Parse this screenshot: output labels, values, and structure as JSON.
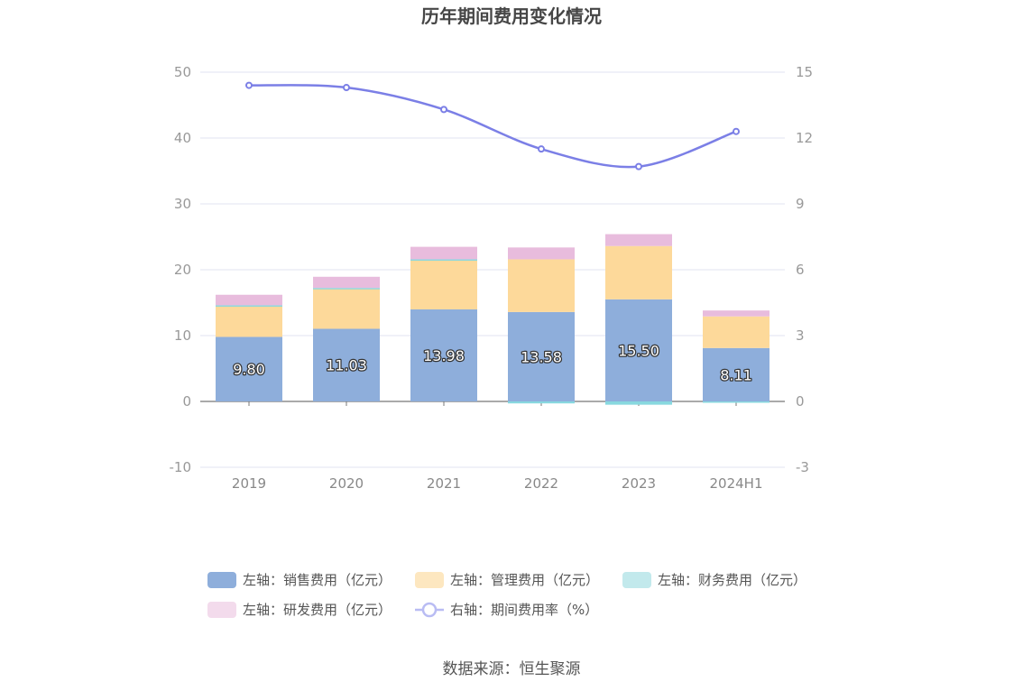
{
  "chart_data": {
    "type": "bar",
    "title": "历年期间费用变化情况",
    "categories": [
      "2019",
      "2020",
      "2021",
      "2022",
      "2023",
      "2024H1"
    ],
    "stacked": true,
    "left_axis": {
      "ylim": [
        -10,
        50
      ],
      "ticks": [
        -10,
        0,
        10,
        20,
        30,
        40,
        50
      ]
    },
    "right_axis": {
      "ylim": [
        -3,
        15
      ],
      "ticks": [
        -3,
        0,
        3,
        6,
        9,
        12,
        15
      ]
    },
    "grid": true,
    "legend_position": "bottom",
    "series": [
      {
        "name": "左轴：销售费用（亿元）",
        "axis": "left",
        "type": "bar",
        "color": "#8eaedb",
        "values": [
          9.8,
          11.03,
          13.98,
          13.58,
          15.5,
          8.11
        ],
        "show_labels": true
      },
      {
        "name": "左轴：管理费用（亿元）",
        "axis": "left",
        "type": "bar",
        "color": "#fdd99a",
        "values": [
          4.7,
          6.1,
          7.5,
          8.0,
          8.1,
          4.8
        ]
      },
      {
        "name": "左轴：财务费用（亿元）",
        "axis": "left",
        "type": "bar",
        "color": "#88d8df",
        "values": [
          0.1,
          0.1,
          0.1,
          -0.3,
          -0.5,
          -0.1
        ]
      },
      {
        "name": "左轴：研发费用（亿元）",
        "axis": "left",
        "type": "bar",
        "color": "#e8bcdd",
        "values": [
          1.6,
          1.7,
          1.9,
          1.8,
          1.8,
          0.9
        ]
      },
      {
        "name": "右轴：期间费用率（%）",
        "axis": "right",
        "type": "line",
        "color": "#7b7fe6",
        "values": [
          14.4,
          14.3,
          13.3,
          11.5,
          10.7,
          12.3
        ]
      }
    ]
  },
  "source": "数据来源：恒生聚源"
}
